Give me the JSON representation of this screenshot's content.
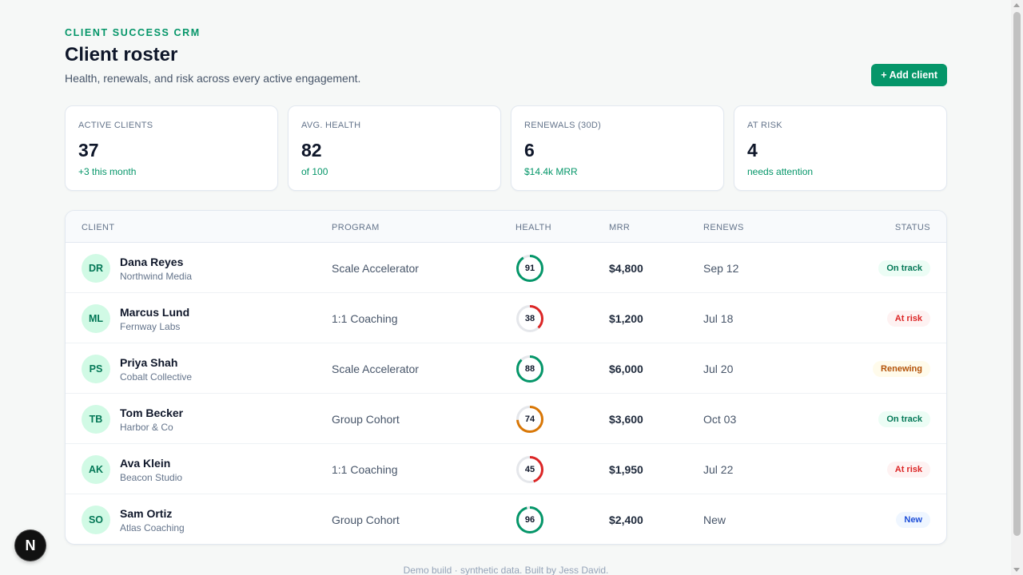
{
  "header": {
    "eyebrow": "CLIENT SUCCESS CRM",
    "title": "Client roster",
    "subtitle": "Health, renewals, and risk across every active engagement.",
    "add_button": "+ Add client"
  },
  "stats": [
    {
      "label": "ACTIVE CLIENTS",
      "value": "37",
      "sub": "+3 this month"
    },
    {
      "label": "AVG. HEALTH",
      "value": "82",
      "sub": "of 100"
    },
    {
      "label": "RENEWALS (30D)",
      "value": "6",
      "sub": "$14.4k MRR"
    },
    {
      "label": "AT RISK",
      "value": "4",
      "sub": "needs attention"
    }
  ],
  "table": {
    "columns": [
      "CLIENT",
      "PROGRAM",
      "HEALTH",
      "MRR",
      "RENEWS",
      "STATUS"
    ],
    "rows": [
      {
        "initials": "DR",
        "name": "Dana Reyes",
        "company": "Northwind Media",
        "program": "Scale Accelerator",
        "health": 91,
        "mrr": "$4,800",
        "renews": "Sep 12",
        "status": "On track",
        "status_kind": "ontrack"
      },
      {
        "initials": "ML",
        "name": "Marcus Lund",
        "company": "Fernway Labs",
        "program": "1:1 Coaching",
        "health": 38,
        "mrr": "$1,200",
        "renews": "Jul 18",
        "status": "At risk",
        "status_kind": "risk"
      },
      {
        "initials": "PS",
        "name": "Priya Shah",
        "company": "Cobalt Collective",
        "program": "Scale Accelerator",
        "health": 88,
        "mrr": "$6,000",
        "renews": "Jul 20",
        "status": "Renewing",
        "status_kind": "renewing"
      },
      {
        "initials": "TB",
        "name": "Tom Becker",
        "company": "Harbor & Co",
        "program": "Group Cohort",
        "health": 74,
        "mrr": "$3,600",
        "renews": "Oct 03",
        "status": "On track",
        "status_kind": "ontrack"
      },
      {
        "initials": "AK",
        "name": "Ava Klein",
        "company": "Beacon Studio",
        "program": "1:1 Coaching",
        "health": 45,
        "mrr": "$1,950",
        "renews": "Jul 22",
        "status": "At risk",
        "status_kind": "risk"
      },
      {
        "initials": "SO",
        "name": "Sam Ortiz",
        "company": "Atlas Coaching",
        "program": "Group Cohort",
        "health": 96,
        "mrr": "$2,400",
        "renews": "New",
        "status": "New",
        "status_kind": "new"
      }
    ]
  },
  "footer": "Demo build · synthetic data. Built by Jess David.",
  "dev_badge": "N",
  "colors": {
    "accent": "#059669",
    "health_good": "#059669",
    "health_mid": "#d97706",
    "health_bad": "#dc2626",
    "ring_track": "#e5e7eb"
  },
  "status_styles": {
    "ontrack": {
      "bg": "#ecfdf5",
      "fg": "#047857"
    },
    "risk": {
      "bg": "#fef2f2",
      "fg": "#dc2626"
    },
    "renewing": {
      "bg": "#fffbeb",
      "fg": "#b45309"
    },
    "new": {
      "bg": "#eff6ff",
      "fg": "#1d4ed8"
    }
  }
}
